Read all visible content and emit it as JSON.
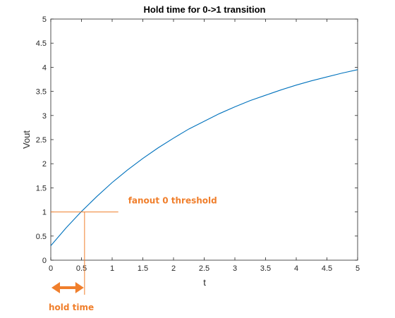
{
  "chart_data": {
    "type": "line",
    "title": "Hold time for 0->1 transition",
    "xlabel": "t",
    "ylabel": "Vout",
    "xlim": [
      0,
      5
    ],
    "ylim": [
      0,
      5
    ],
    "xticks": [
      "0",
      "0.5",
      "1",
      "1.5",
      "2",
      "2.5",
      "3",
      "3.5",
      "4",
      "4.5",
      "5"
    ],
    "yticks": [
      "0",
      "0.5",
      "1",
      "1.5",
      "2",
      "2.5",
      "3",
      "3.5",
      "4",
      "4.5",
      "5"
    ],
    "grid": false,
    "series": [
      {
        "color": "#0072bd",
        "x": [
          0,
          0.25,
          0.5,
          0.75,
          1,
          1.25,
          1.5,
          1.75,
          2,
          2.25,
          2.5,
          2.75,
          3,
          3.25,
          3.5,
          3.75,
          4,
          4.25,
          4.5,
          4.75,
          5
        ],
        "y": [
          0.3,
          0.67,
          1.01,
          1.32,
          1.61,
          1.87,
          2.11,
          2.33,
          2.53,
          2.72,
          2.88,
          3.04,
          3.18,
          3.31,
          3.42,
          3.53,
          3.63,
          3.72,
          3.8,
          3.88,
          3.95
        ]
      }
    ],
    "annotations": {
      "threshold": {
        "label": "fanout 0 threshold",
        "y": 1,
        "x_end": 1.1,
        "color": "#f07f2c"
      },
      "crossing_x": 0.55,
      "hold": {
        "label": "hold time",
        "x_start": 0,
        "x_end": 0.55,
        "color": "#f07f2c"
      }
    }
  }
}
